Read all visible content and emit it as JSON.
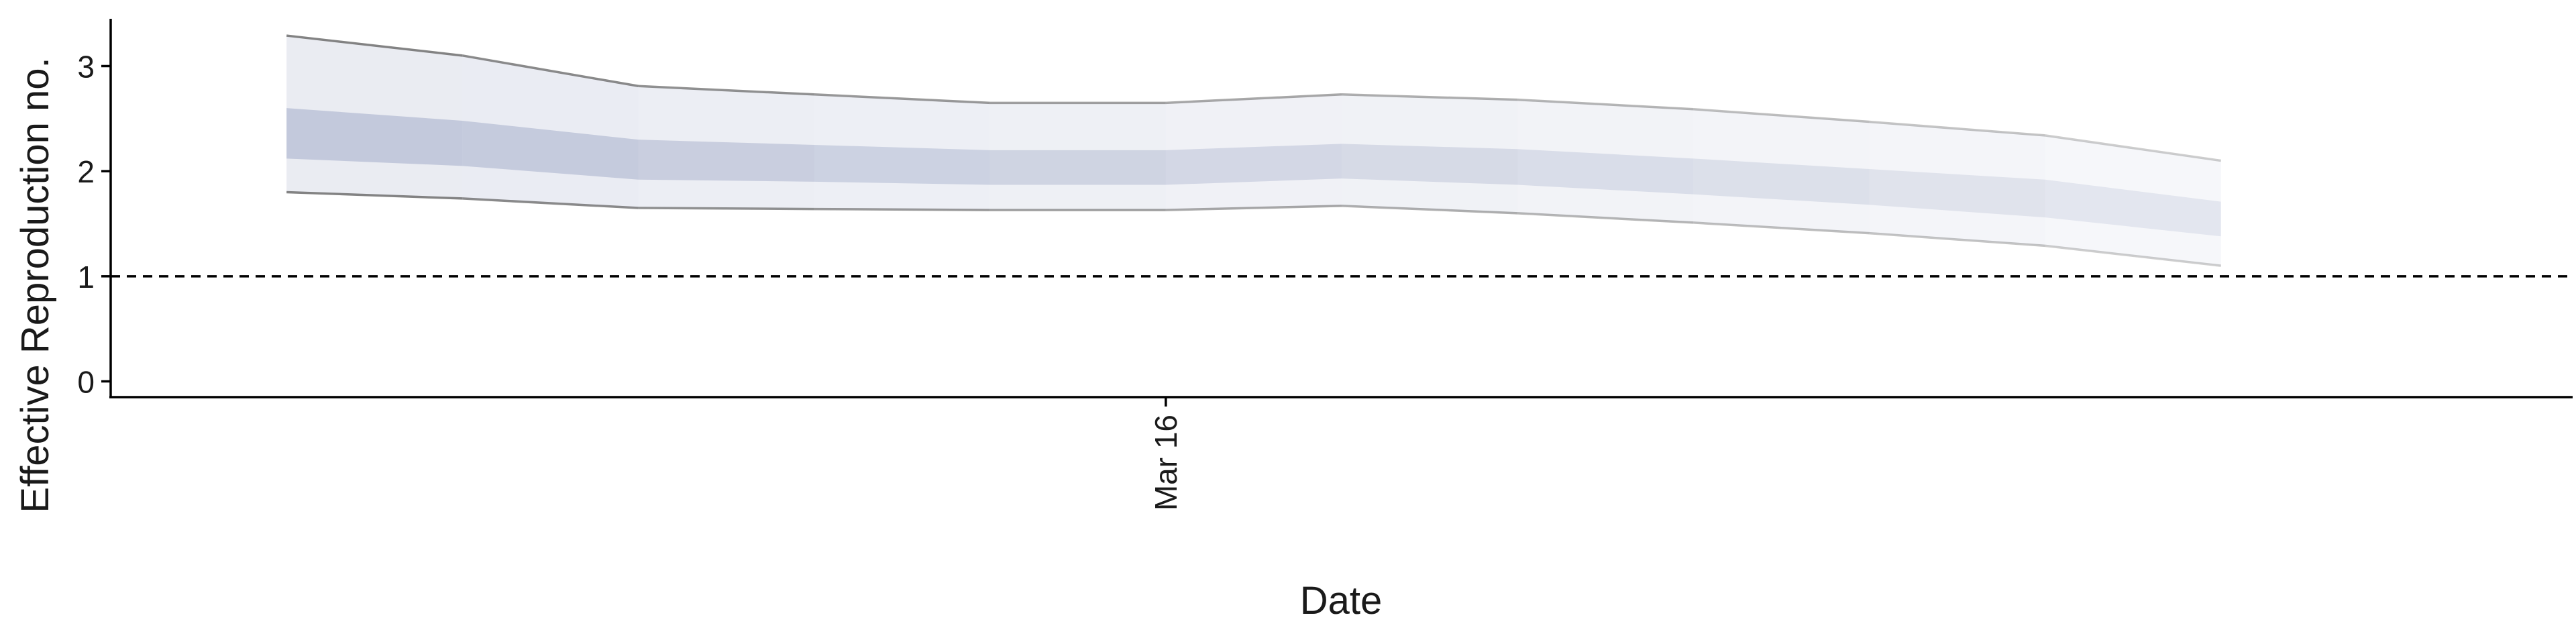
{
  "chart_data": {
    "type": "area",
    "xlabel": "Date",
    "ylabel": "Effective Reproduction no.",
    "x": [
      "2020-03-11",
      "2020-03-12",
      "2020-03-13",
      "2020-03-14",
      "2020-03-15",
      "2020-03-16",
      "2020-03-17",
      "2020-03-18",
      "2020-03-19",
      "2020-03-20",
      "2020-03-21",
      "2020-03-22",
      "2020-03-23"
    ],
    "x_ticks": [
      {
        "label": "Mar 16",
        "date": "2020-03-16"
      }
    ],
    "y_ticks": [
      0,
      1,
      2,
      3
    ],
    "ylim": [
      -0.15,
      3.45
    ],
    "xlim": [
      "2020-03-10",
      "2020-03-24"
    ],
    "series": [
      {
        "band": "outer",
        "lower": [
          1.8,
          1.74,
          1.65,
          1.64,
          1.63,
          1.63,
          1.67,
          1.6,
          1.51,
          1.41,
          1.29,
          1.1
        ],
        "upper": [
          3.29,
          3.1,
          2.81,
          2.73,
          2.65,
          2.65,
          2.73,
          2.68,
          2.59,
          2.47,
          2.34,
          2.1
        ]
      },
      {
        "band": "inner",
        "lower": [
          2.12,
          2.05,
          1.92,
          1.9,
          1.87,
          1.87,
          1.93,
          1.87,
          1.78,
          1.68,
          1.56,
          1.38
        ],
        "upper": [
          2.6,
          2.48,
          2.3,
          2.25,
          2.2,
          2.2,
          2.26,
          2.21,
          2.12,
          2.02,
          1.92,
          1.71
        ]
      }
    ],
    "band_dates": [
      "2020-03-11",
      "2020-03-12",
      "2020-03-13",
      "2020-03-14",
      "2020-03-15",
      "2020-03-16",
      "2020-03-17",
      "2020-03-18",
      "2020-03-19",
      "2020-03-20",
      "2020-03-21",
      "2020-03-22"
    ],
    "reference_line": {
      "y": 1,
      "style": "dashed"
    },
    "grid": false,
    "colors": {
      "band": "#3c4f8c",
      "outline": "#6e6e6e",
      "reference": "#000000"
    }
  }
}
